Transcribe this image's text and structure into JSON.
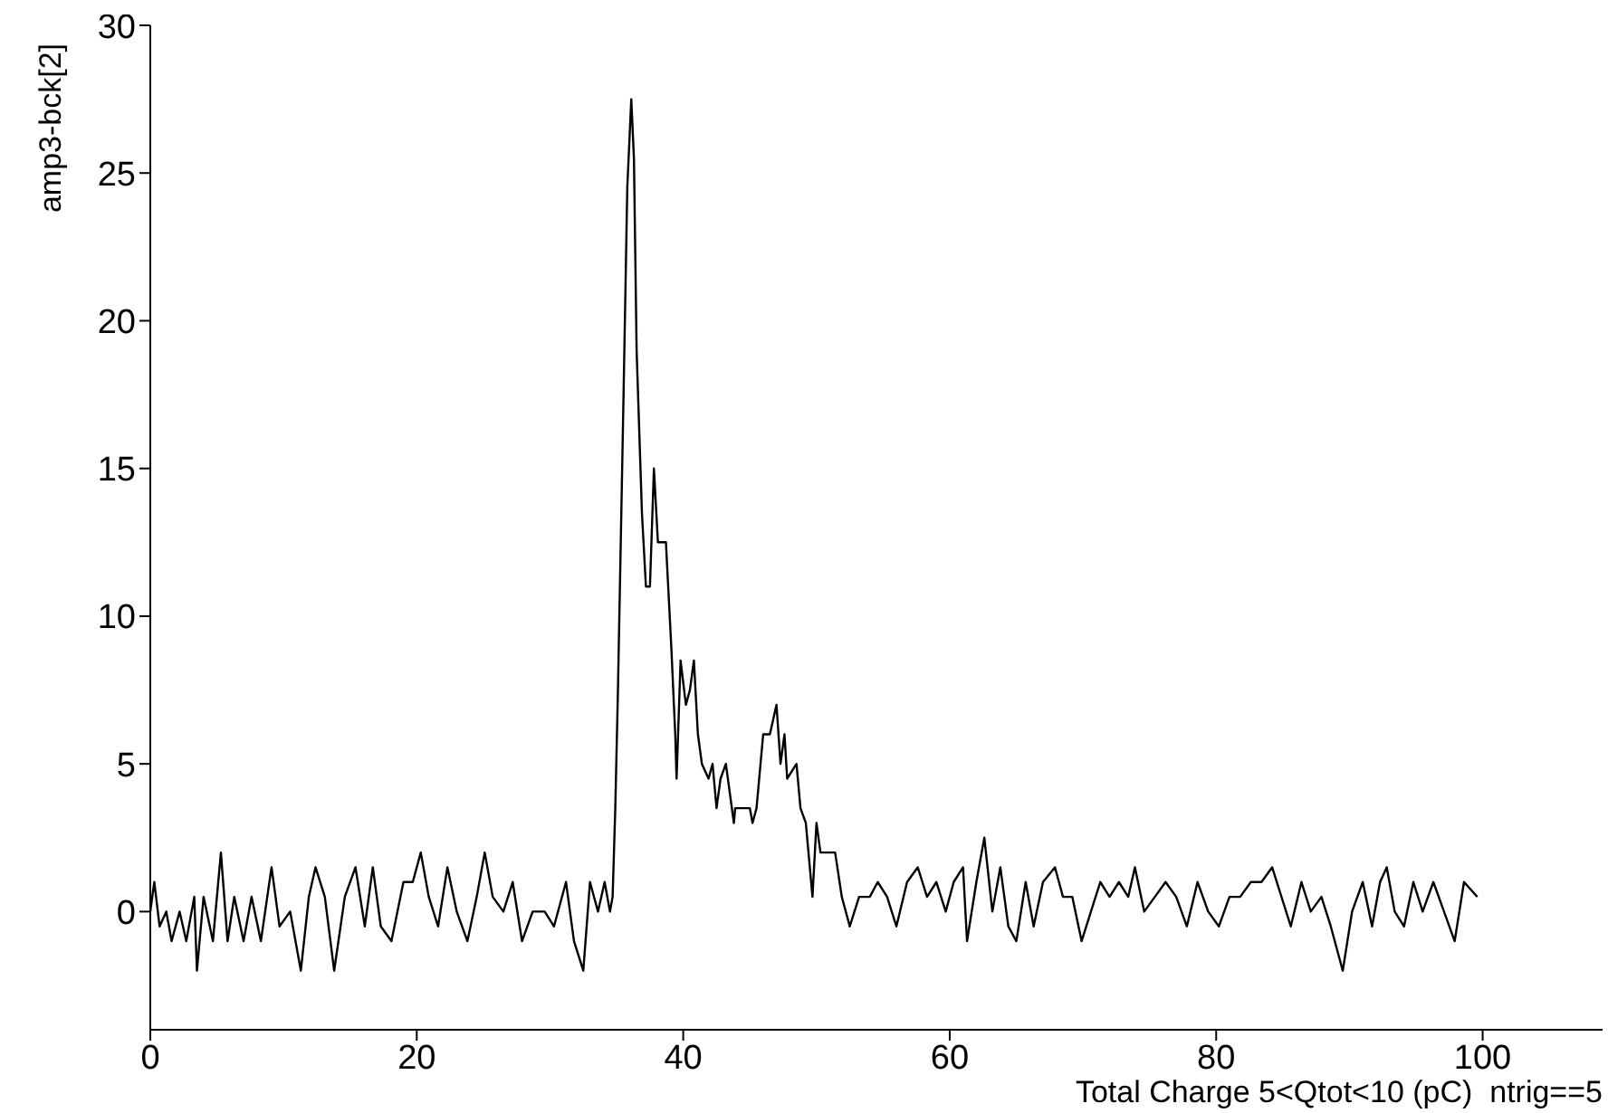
{
  "chart_data": {
    "type": "line",
    "xlabel": "Total Charge 5<Qtot<10 (pC)  ntrig==5",
    "ylabel": "amp3-bck[2]",
    "xlim": [
      0,
      109
    ],
    "xticks": [
      0,
      20,
      40,
      60,
      80,
      100
    ],
    "ylim": [
      -4,
      30
    ],
    "yticks": [
      0,
      5,
      10,
      15,
      20,
      25,
      30
    ],
    "grid": false,
    "legend": false,
    "marker": "none",
    "line_style": "solid",
    "x": [
      0,
      0.3,
      0.7,
      1.2,
      1.6,
      2.2,
      2.7,
      3.3,
      3.5,
      4,
      4.7,
      5.3,
      5.8,
      6.3,
      7,
      7.6,
      8.3,
      9.1,
      9.7,
      10.5,
      11.3,
      11.9,
      12.4,
      13.1,
      13.8,
      14.6,
      15.4,
      16.1,
      16.7,
      17.3,
      18.1,
      19,
      19.7,
      20.3,
      20.9,
      21.6,
      22.3,
      23,
      23.8,
      24.5,
      25.1,
      25.7,
      26.5,
      27.2,
      27.9,
      28.7,
      29.6,
      30.3,
      31.2,
      31.8,
      32.5,
      33,
      33.6,
      34.1,
      34.5,
      34.7,
      34.9,
      35.1,
      35.5,
      35.8,
      36.1,
      36.3,
      36.5,
      36.9,
      37.2,
      37.5,
      37.8,
      38.1,
      38.7,
      39.1,
      39.4,
      39.5,
      39.8,
      40.2,
      40.5,
      40.8,
      41.1,
      41.4,
      41.9,
      42.2,
      42.5,
      42.8,
      43.2,
      43.8,
      43.9,
      45,
      45.2,
      45.5,
      46,
      46.5,
      47,
      47.3,
      47.6,
      47.8,
      48.5,
      48.8,
      49.2,
      49.7,
      50,
      50.3,
      51.4,
      51.9,
      52.5,
      53.2,
      54,
      54.6,
      55.3,
      56,
      56.8,
      57.6,
      58.3,
      59,
      59.7,
      60.3,
      61,
      61.3,
      62,
      62.6,
      63.2,
      63.8,
      64.4,
      65,
      65.7,
      66.3,
      67,
      67.9,
      68.5,
      69.2,
      69.9,
      70.6,
      71.3,
      72,
      72.7,
      73.4,
      73.9,
      74.6,
      75.4,
      76.2,
      77,
      77.8,
      78.6,
      79.4,
      80.2,
      81,
      81.8,
      82.6,
      83.4,
      84.2,
      84.9,
      85.6,
      86.4,
      87.1,
      87.9,
      88.6,
      89.5,
      90.2,
      91,
      91.7,
      92.3,
      92.8,
      93.4,
      94.1,
      94.8,
      95.5,
      96.3,
      97.1,
      97.9,
      98.6,
      99.6
    ],
    "series": [
      {
        "color": "#000000",
        "values": [
          0,
          1,
          -0.5,
          0,
          -1,
          0,
          -1,
          0.5,
          -2,
          0.5,
          -1,
          2,
          -1,
          0.5,
          -1,
          0.5,
          -1,
          1.5,
          -0.5,
          0,
          -2,
          0.5,
          1.5,
          0.5,
          -2,
          0.5,
          1.5,
          -0.5,
          1.5,
          -0.5,
          -1,
          1,
          1,
          2,
          0.5,
          -0.5,
          1.5,
          0,
          -1,
          0.5,
          2,
          0.5,
          0,
          1,
          -1,
          0,
          0,
          -0.5,
          1,
          -1,
          -2,
          1,
          0,
          1,
          0,
          0.5,
          3.5,
          7.5,
          17,
          24.5,
          27.5,
          25.5,
          19,
          13.5,
          11,
          11,
          15,
          12.5,
          12.5,
          9,
          6,
          4.5,
          8.5,
          7,
          7.5,
          8.5,
          6,
          5,
          4.5,
          5,
          3.5,
          4.5,
          5,
          3,
          3.5,
          3.5,
          3,
          3.5,
          6,
          6,
          7,
          5,
          6,
          4.5,
          5,
          3.5,
          3,
          0.5,
          3,
          2,
          2,
          0.5,
          -0.5,
          0.5,
          0.5,
          1,
          0.5,
          -0.5,
          1,
          1.5,
          0.5,
          1,
          0,
          1,
          1.5,
          -1,
          1,
          2.5,
          0,
          1.5,
          -0.5,
          -1,
          1,
          -0.5,
          1,
          1.5,
          0.5,
          0.5,
          -1,
          0,
          1,
          0.5,
          1,
          0.5,
          1.5,
          0,
          0.5,
          1,
          0.5,
          -0.5,
          1,
          0,
          -0.5,
          0.5,
          0.5,
          1,
          1,
          1.5,
          0.5,
          -0.5,
          1,
          0,
          0.5,
          -0.5,
          -2,
          0,
          1,
          -0.5,
          1,
          1.5,
          0,
          -0.5,
          1,
          0,
          1,
          0,
          -1,
          1,
          0.5
        ]
      }
    ]
  }
}
